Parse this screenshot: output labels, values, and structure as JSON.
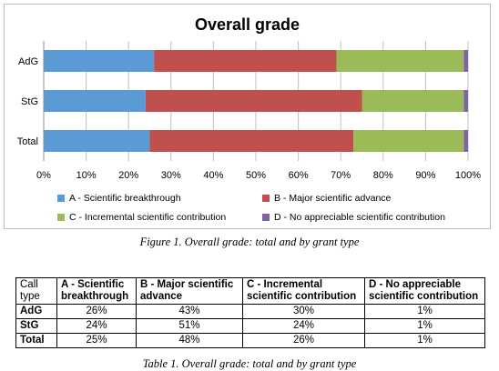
{
  "chart_data": {
    "type": "bar",
    "orientation": "horizontal",
    "stacked": true,
    "title": "Overall grade",
    "categories": [
      "AdG",
      "StG",
      "Total"
    ],
    "series": [
      {
        "name": "A - Scientific breakthrough",
        "color": "#5b9bd5",
        "values": [
          26,
          24,
          25
        ]
      },
      {
        "name": "B - Major scientific advance",
        "color": "#c0504d",
        "values": [
          43,
          51,
          48
        ]
      },
      {
        "name": "C - Incremental scientific contribution",
        "color": "#9bbb59",
        "values": [
          30,
          24,
          26
        ]
      },
      {
        "name": "D - No appreciable scientific contribution",
        "color": "#8064a2",
        "values": [
          1,
          1,
          1
        ]
      }
    ],
    "xlim": [
      0,
      100
    ],
    "x_ticks": [
      "0%",
      "10%",
      "20%",
      "30%",
      "40%",
      "50%",
      "60%",
      "70%",
      "80%",
      "90%",
      "100%"
    ],
    "grid": "vertical",
    "legend_position": "bottom"
  },
  "figure_caption": "Figure 1. Overall grade: total and by grant type",
  "table": {
    "headers": [
      "Call type",
      "A - Scientific breakthrough",
      "B - Major scientific advance",
      "C - Incremental scientific contribution",
      "D - No appreciable scientific contribution"
    ],
    "rows": [
      [
        "AdG",
        "26%",
        "43%",
        "30%",
        "1%"
      ],
      [
        "StG",
        "24%",
        "51%",
        "24%",
        "1%"
      ],
      [
        "Total",
        "25%",
        "48%",
        "26%",
        "1%"
      ]
    ]
  },
  "table_caption": "Table 1. Overall grade: total and by grant type"
}
